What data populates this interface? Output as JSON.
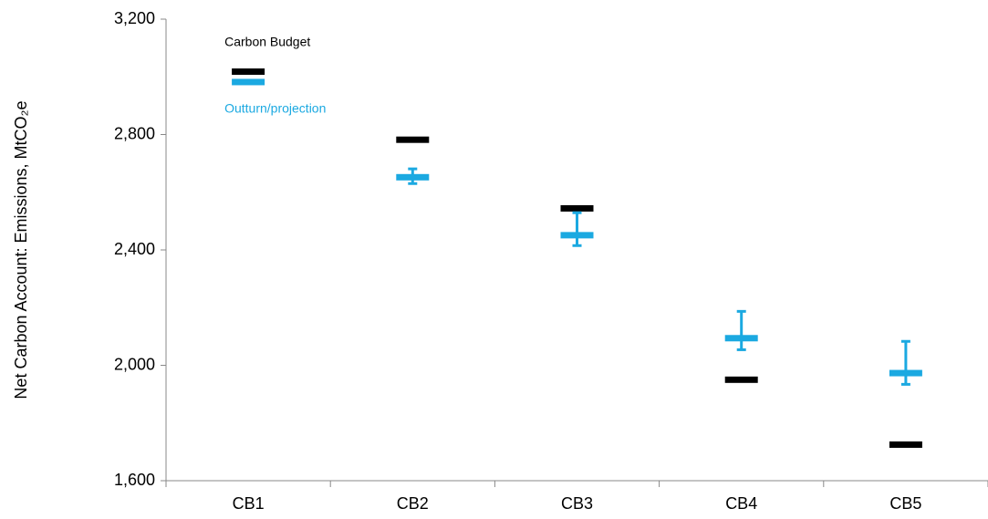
{
  "chart_data": {
    "type": "errorbar",
    "y_label": "Net Carbon Account: Emissions, MtCO₂e",
    "categories": [
      "CB1",
      "CB2",
      "CB3",
      "CB4",
      "CB5"
    ],
    "series": [
      {
        "name": "Carbon Budget",
        "color": "#000000",
        "values": [
          3018,
          2782,
          2544,
          1950,
          1725
        ]
      },
      {
        "name": "Outturn/projection",
        "color": "#1ba9e1",
        "values": [
          2982,
          2652,
          2451,
          2094,
          1973
        ],
        "high": [
          null,
          2681,
          2529,
          2187,
          2083
        ],
        "low": [
          null,
          2630,
          2415,
          2054,
          1934
        ]
      }
    ],
    "ylim": [
      1600,
      3200
    ],
    "yticks": [
      {
        "value": 1600,
        "label": "1,600"
      },
      {
        "value": 2000,
        "label": "2,000"
      },
      {
        "value": 2400,
        "label": "2,400"
      },
      {
        "value": 2800,
        "label": "2,800"
      },
      {
        "value": 3200,
        "label": "3,200"
      }
    ],
    "grid": false
  }
}
